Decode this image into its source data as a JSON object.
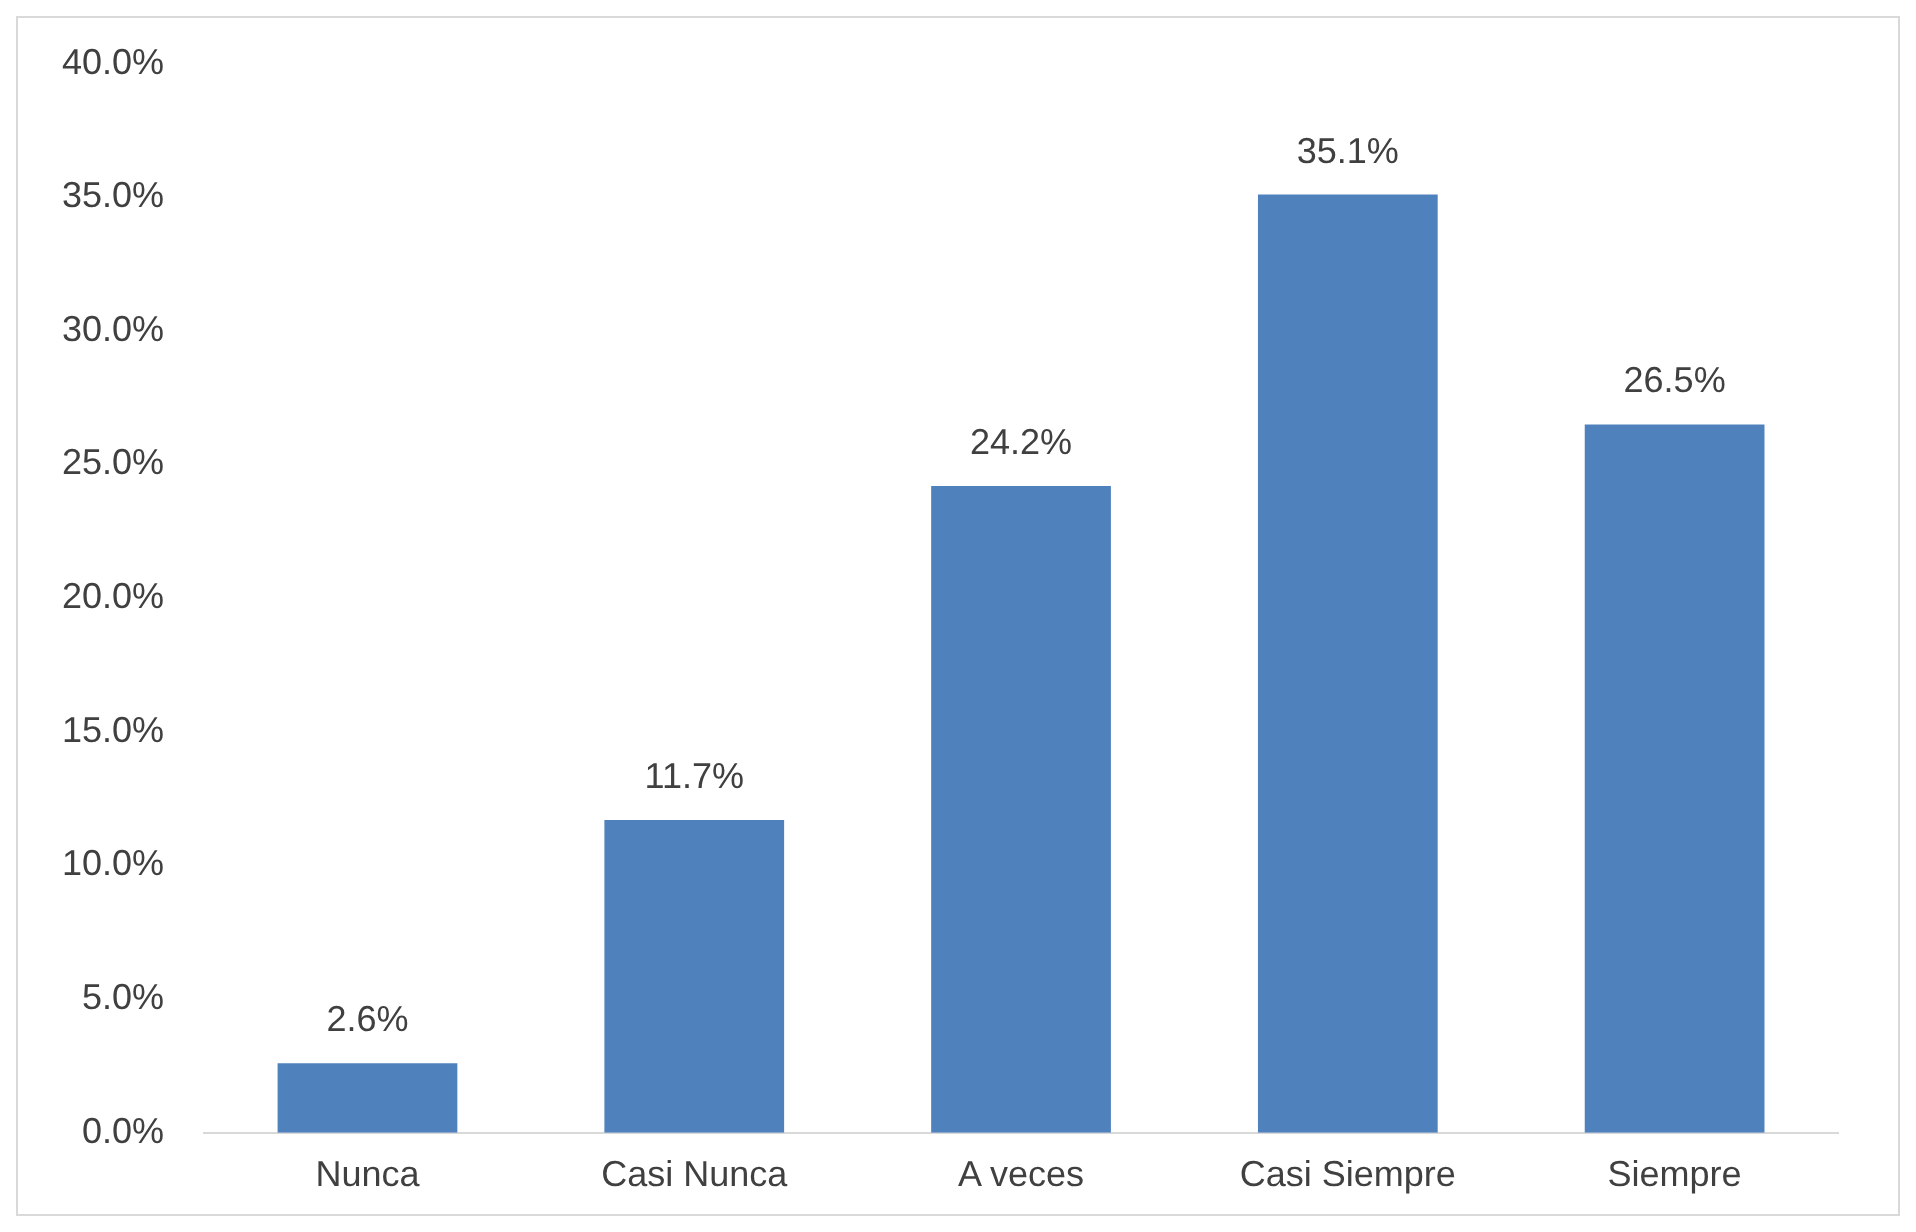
{
  "chart_data": {
    "type": "bar",
    "categories": [
      "Nunca",
      "Casi Nunca",
      "A veces",
      "Casi Siempre",
      "Siempre"
    ],
    "values": [
      2.6,
      11.7,
      24.2,
      35.1,
      26.5
    ],
    "value_labels": [
      "2.6%",
      "11.7%",
      "24.2%",
      "35.1%",
      "26.5%"
    ],
    "color": "#4f81bd",
    "ylim": [
      0,
      40
    ],
    "yticks": [
      {
        "value": 0,
        "label": "0.0%"
      },
      {
        "value": 5,
        "label": "5.0%"
      },
      {
        "value": 10,
        "label": "10.0%"
      },
      {
        "value": 15,
        "label": "15.0%"
      },
      {
        "value": 20,
        "label": "20.0%"
      },
      {
        "value": 25,
        "label": "25.0%"
      },
      {
        "value": 30,
        "label": "30.0%"
      },
      {
        "value": 35,
        "label": "35.0%"
      },
      {
        "value": 40,
        "label": "40.0%"
      }
    ],
    "grid": false,
    "legend": false
  }
}
